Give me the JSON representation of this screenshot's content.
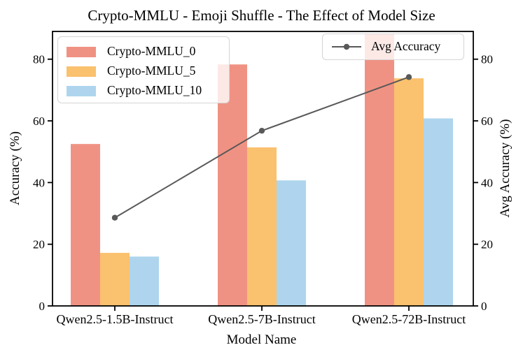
{
  "title": "Crypto-MMLU - Emoji Shuffle - The Effect of Model Size",
  "chart_data": {
    "type": "bar",
    "title": "Crypto-MMLU - Emoji Shuffle - The Effect of Model Size",
    "xlabel": "Model Name",
    "ylabel": "Accuracy (%)",
    "ylabel_right": "Avg Accuracy (%)",
    "categories": [
      "Qwen2.5-1.5B-Instruct",
      "Qwen2.5-7B-Instruct",
      "Qwen2.5-72B-Instruct"
    ],
    "series": [
      {
        "name": "Crypto-MMLU_0",
        "color": "#F09283",
        "values": [
          52.5,
          78.3,
          88.1
        ]
      },
      {
        "name": "Crypto-MMLU_5",
        "color": "#FAC16E",
        "values": [
          17.2,
          51.4,
          73.8
        ]
      },
      {
        "name": "Crypto-MMLU_10",
        "color": "#AED5ED",
        "values": [
          16.0,
          40.7,
          60.8
        ]
      }
    ],
    "line_series": {
      "name": "Avg Accuracy",
      "color": "#595959",
      "values": [
        28.6,
        56.8,
        74.2
      ]
    },
    "yticks": [
      0,
      20,
      40,
      60,
      80
    ],
    "ylim": [
      0,
      89
    ],
    "grid": false,
    "legend_positions": [
      "upper left",
      "upper right"
    ],
    "frame_color": "#000000"
  }
}
